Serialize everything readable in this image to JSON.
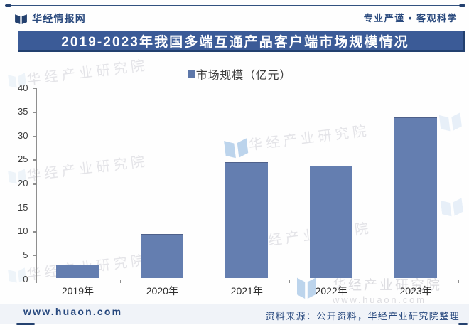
{
  "header": {
    "brand": "华经情报网",
    "slogan": "专业严谨 • 客观科学"
  },
  "title": "2019-2023年我国多端互通产品客户端市场规模情况",
  "legend": {
    "label": "市场规模（亿元）"
  },
  "chart_data": {
    "type": "bar",
    "title": "2019-2023年我国多端互通产品客户端市场规模情况",
    "categories": [
      "2019年",
      "2020年",
      "2021年",
      "2022年",
      "2023年"
    ],
    "series": [
      {
        "name": "市场规模（亿元）",
        "values": [
          3.1,
          9.5,
          24.4,
          23.7,
          33.9
        ]
      }
    ],
    "xlabel": "",
    "ylabel": "",
    "ylim": [
      0,
      40
    ],
    "ytick_step": 5,
    "grid": false,
    "legend_position": "top",
    "bar_color": "#647eb0"
  },
  "watermark": {
    "text": "华经产业研究院",
    "url": "www.huaon.com"
  },
  "footer": {
    "site": "www.huaon.com",
    "source": "资料来源：公开资料，华经产业研究院整理"
  },
  "colors": {
    "accent_dark_blue": "#2a4a7e",
    "title_bar": "#3b5b97",
    "bar_fill": "#647eb0",
    "axis_gray": "#8f8f8f",
    "watermark_gray": "#e0e0e3",
    "watermark_blue": "#b9d2ec"
  }
}
